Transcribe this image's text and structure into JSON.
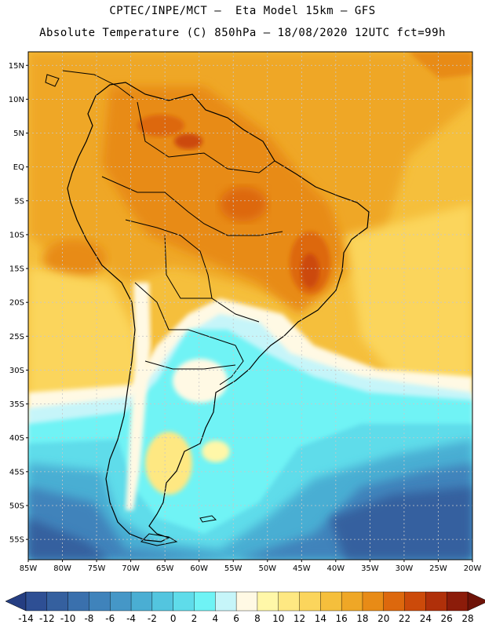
{
  "header": {
    "line1": "CPTEC/INPE/MCT –  Eta Model 15km – GFS",
    "line2": "Absolute Temperature (C) 850hPa – 18/08/2020 12UTC fct=99h"
  },
  "map": {
    "region": "South America",
    "lon_range": [
      -85,
      -20
    ],
    "lat_range": [
      -58,
      17
    ],
    "lat_labels": [
      {
        "lat": 15,
        "label": "15N"
      },
      {
        "lat": 10,
        "label": "10N"
      },
      {
        "lat": 5,
        "label": "5N"
      },
      {
        "lat": 0,
        "label": "EQ"
      },
      {
        "lat": -5,
        "label": "5S"
      },
      {
        "lat": -10,
        "label": "10S"
      },
      {
        "lat": -15,
        "label": "15S"
      },
      {
        "lat": -20,
        "label": "20S"
      },
      {
        "lat": -25,
        "label": "25S"
      },
      {
        "lat": -30,
        "label": "30S"
      },
      {
        "lat": -35,
        "label": "35S"
      },
      {
        "lat": -40,
        "label": "40S"
      },
      {
        "lat": -45,
        "label": "45S"
      },
      {
        "lat": -50,
        "label": "50S"
      },
      {
        "lat": -55,
        "label": "55S"
      }
    ],
    "lon_labels": [
      {
        "lon": -85,
        "label": "85W"
      },
      {
        "lon": -80,
        "label": "80W"
      },
      {
        "lon": -75,
        "label": "75W"
      },
      {
        "lon": -70,
        "label": "70W"
      },
      {
        "lon": -65,
        "label": "65W"
      },
      {
        "lon": -60,
        "label": "60W"
      },
      {
        "lon": -55,
        "label": "55W"
      },
      {
        "lon": -50,
        "label": "50W"
      },
      {
        "lon": -45,
        "label": "45W"
      },
      {
        "lon": -40,
        "label": "40W"
      },
      {
        "lon": -35,
        "label": "35W"
      },
      {
        "lon": -30,
        "label": "30W"
      },
      {
        "lon": -25,
        "label": "25W"
      },
      {
        "lon": -20,
        "label": "20W"
      }
    ]
  },
  "colorbar": {
    "labels": [
      "-14",
      "-12",
      "-10",
      "-8",
      "-6",
      "-4",
      "-2",
      "0",
      "2",
      "4",
      "6",
      "8",
      "10",
      "12",
      "14",
      "16",
      "18",
      "20",
      "22",
      "24",
      "26",
      "28"
    ],
    "colors": [
      "#2e4f94",
      "#35609f",
      "#3a70ad",
      "#3f83bb",
      "#4597c7",
      "#4aaed3",
      "#53c5df",
      "#5fdcea",
      "#6ff3f5",
      "#c6f5f9",
      "#fff9e4",
      "#fff7a8",
      "#fee882",
      "#fbd55c",
      "#f5bf3c",
      "#efa726",
      "#e88b16",
      "#dd680d",
      "#cc4a0a",
      "#b0300a",
      "#8c1c0a"
    ],
    "low_color": "#253e82",
    "high_color": "#6e1308"
  }
}
